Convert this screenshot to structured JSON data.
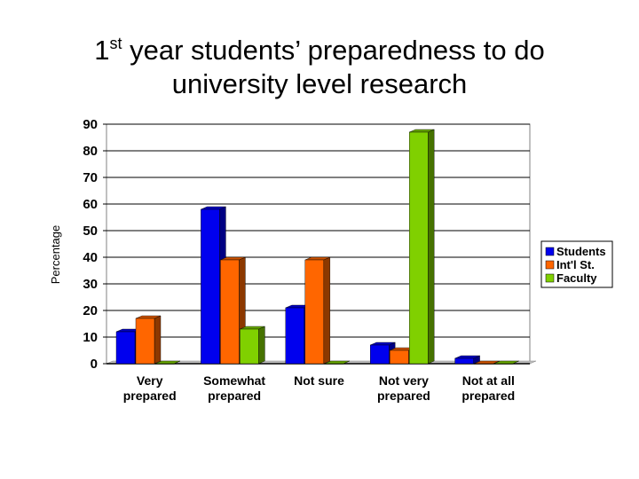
{
  "title": {
    "line1_prefix": "1",
    "line1_sup": "st",
    "line1_rest": " year students’ preparedness to do",
    "line2": "university level research"
  },
  "chart_data": {
    "type": "bar",
    "title": "1st year students’ preparedness to do university level research",
    "ylabel": "Percentage",
    "xlabel": "",
    "ylim": [
      0,
      90
    ],
    "yticks": [
      0,
      10,
      20,
      30,
      40,
      50,
      60,
      70,
      80,
      90
    ],
    "grid": true,
    "legend_position": "right",
    "categories": [
      [
        "Very",
        "prepared"
      ],
      [
        "Somewhat",
        "prepared"
      ],
      [
        "Not sure"
      ],
      [
        "Not very",
        "prepared"
      ],
      [
        "Not at all",
        "prepared"
      ]
    ],
    "series": [
      {
        "name": "Students",
        "color": "#0000ee",
        "values": [
          12,
          58,
          21,
          7,
          2
        ]
      },
      {
        "name": "Int'l St.",
        "color": "#ff6600",
        "values": [
          17,
          39,
          39,
          5,
          0
        ]
      },
      {
        "name": "Faculty",
        "color": "#80d000",
        "values": [
          0,
          13,
          0,
          87,
          0
        ]
      }
    ]
  }
}
